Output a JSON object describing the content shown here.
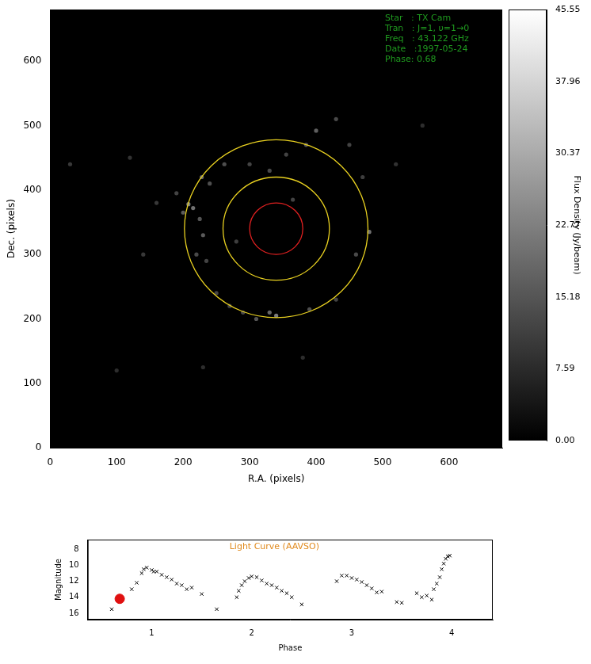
{
  "chart_data": [
    {
      "type": "scatter",
      "x_label": "R.A. (pixels)",
      "y_label": "Dec. (pixels)",
      "annotation": [
        "Star   : TX Cam",
        "Tran   : J=1, υ=1→0",
        "Freq   : 43.122 GHz",
        "Date   :1997-05-24",
        "Phase: 0.68"
      ],
      "xlim": [
        0,
        680
      ],
      "ylim": [
        0,
        680
      ],
      "xticks": [
        0,
        100,
        200,
        300,
        400,
        500,
        600
      ],
      "yticks": [
        0,
        100,
        200,
        300,
        400,
        500,
        600
      ],
      "grid": false,
      "spots": {
        "x": [
          228,
          240,
          208,
          215,
          200,
          225,
          190,
          230,
          220,
          235,
          262,
          300,
          330,
          355,
          385,
          400,
          430,
          450,
          470,
          480,
          460,
          430,
          390,
          340,
          330,
          310,
          290,
          270,
          250,
          160,
          140,
          120,
          100,
          230,
          560,
          520,
          380,
          30,
          280,
          365
        ],
        "y": [
          420,
          410,
          378,
          372,
          365,
          355,
          395,
          330,
          300,
          290,
          440,
          440,
          430,
          455,
          470,
          492,
          510,
          470,
          420,
          335,
          300,
          230,
          215,
          205,
          210,
          200,
          210,
          220,
          240,
          380,
          300,
          450,
          120,
          125,
          500,
          440,
          140,
          440,
          320,
          385
        ],
        "flux": [
          18,
          14,
          22,
          20,
          16,
          15,
          12,
          16,
          13,
          12,
          14,
          12,
          13,
          12,
          15,
          17,
          13,
          12,
          11,
          20,
          13,
          12,
          14,
          22,
          18,
          15,
          13,
          12,
          12,
          10,
          10,
          9,
          8,
          8,
          8,
          9,
          8,
          10,
          11,
          12
        ]
      },
      "circles": [
        {
          "center": [
            340,
            340
          ],
          "radius": 40,
          "color": "#e02020"
        },
        {
          "center": [
            340,
            340
          ],
          "radius": 80,
          "color": "#e8d020"
        },
        {
          "center": [
            340,
            340
          ],
          "radius": 138,
          "color": "#e8d020"
        }
      ],
      "colorbar": {
        "label": "Flux Density (Jy/beam)",
        "range": [
          0,
          45.55
        ],
        "ticks": [
          {
            "value": 0,
            "label": "0.00"
          },
          7.59,
          15.18,
          22.77,
          30.37,
          37.96,
          45.55
        ]
      }
    },
    {
      "type": "scatter",
      "title": "Light Curve (AAVSO)",
      "x_label": "Phase",
      "y_label": "Magnitude",
      "marker": "x",
      "color": "#000000",
      "grid": false,
      "xlim": [
        0.36,
        4.41
      ],
      "ylim": [
        16.8,
        6.8
      ],
      "xticks": [
        1,
        2,
        3,
        4
      ],
      "yticks": [
        8,
        10,
        12,
        14,
        16
      ],
      "x": [
        0.6,
        0.8,
        0.85,
        0.9,
        0.92,
        0.95,
        1.0,
        1.02,
        1.05,
        1.1,
        1.15,
        1.2,
        1.25,
        1.3,
        1.35,
        1.4,
        1.5,
        1.65,
        1.85,
        1.87,
        1.9,
        1.93,
        1.97,
        2.0,
        2.05,
        2.1,
        2.15,
        2.2,
        2.25,
        2.3,
        2.35,
        2.4,
        2.5,
        2.85,
        2.9,
        2.95,
        3.0,
        3.05,
        3.1,
        3.15,
        3.2,
        3.25,
        3.3,
        3.45,
        3.5,
        3.65,
        3.7,
        3.75,
        3.8,
        3.82,
        3.85,
        3.88,
        3.9,
        3.92,
        3.94,
        3.96,
        3.98
      ],
      "values": [
        15.5,
        13.0,
        12.2,
        11.0,
        10.5,
        10.3,
        10.6,
        10.8,
        10.8,
        11.2,
        11.5,
        11.8,
        12.3,
        12.5,
        13.0,
        12.8,
        13.6,
        15.5,
        14.0,
        13.2,
        12.5,
        12.0,
        11.6,
        11.4,
        11.5,
        11.9,
        12.3,
        12.5,
        12.8,
        13.2,
        13.5,
        14.0,
        14.9,
        12.0,
        11.3,
        11.3,
        11.6,
        11.8,
        12.1,
        12.5,
        12.9,
        13.4,
        13.3,
        14.6,
        14.7,
        13.5,
        14.0,
        13.8,
        14.3,
        13.0,
        12.3,
        11.5,
        10.5,
        9.8,
        9.2,
        8.9,
        8.8
      ],
      "highlight": {
        "x": 0.68,
        "value": 14.2,
        "color": "#e01010"
      }
    }
  ]
}
